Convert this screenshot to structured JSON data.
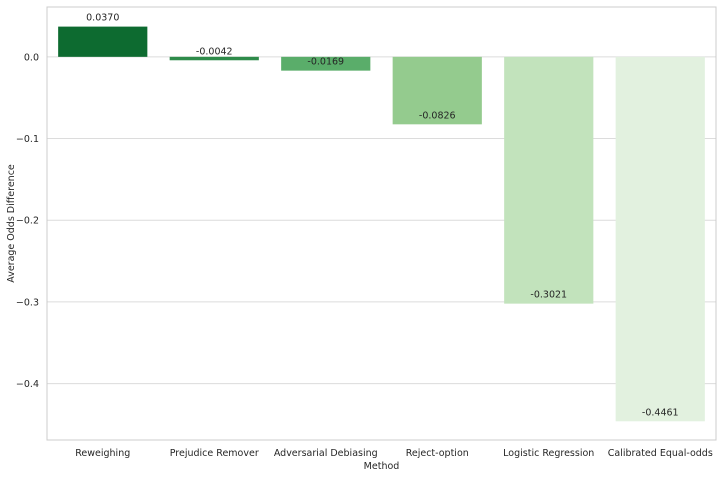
{
  "chart_data": {
    "type": "bar",
    "title": "",
    "xlabel": "Method",
    "ylabel": "Average Odds Difference",
    "categories": [
      "Reweighing",
      "Prejudice Remover",
      "Adversarial Debiasing",
      "Reject-option",
      "Logistic Regression",
      "Calibrated Equal-odds"
    ],
    "values": [
      0.037,
      -0.0042,
      -0.0169,
      -0.0826,
      -0.3021,
      -0.4461
    ],
    "value_labels": [
      "0.0370",
      "-0.0042",
      "-0.0169",
      "-0.0826",
      "-0.3021",
      "-0.4461"
    ],
    "colors": [
      "#0d6b30",
      "#2e8b4a",
      "#5aad6a",
      "#94cb8e",
      "#c2e3bc",
      "#e2f1df"
    ],
    "yticks": [
      0.0,
      -0.1,
      -0.2,
      -0.3,
      -0.4
    ],
    "ytick_labels": [
      "0.0",
      "−0.1",
      "−0.2",
      "−0.3",
      "−0.4"
    ],
    "ylim": [
      -0.469,
      0.061
    ],
    "grid": true,
    "legend": "none"
  }
}
